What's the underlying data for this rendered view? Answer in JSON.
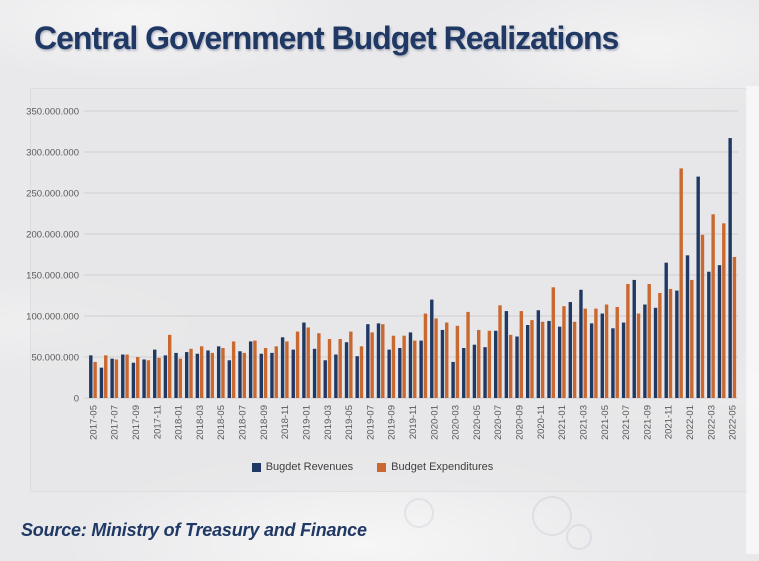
{
  "page": {
    "source": "Source: Ministry of Treasury and Finance"
  },
  "chart_data": {
    "type": "bar",
    "title": "Central Government Budget Realizations",
    "xlabel": "",
    "ylabel": "",
    "ylim": [
      0,
      350000000
    ],
    "ytick_step": 50000000,
    "ytick_labels": [
      "0",
      "50.000.000",
      "100.000.000",
      "150.000.000",
      "200.000.000",
      "250.000.000",
      "300.000.000",
      "350.000.000"
    ],
    "xtick_every_n": 2,
    "grid": true,
    "legend_position": "bottom",
    "axis_label_color": "#595959",
    "gridline_color": "#cfcfd1",
    "categories": [
      "2017-05",
      "2017-06",
      "2017-07",
      "2017-08",
      "2017-09",
      "2017-10",
      "2017-11",
      "2017-12",
      "2018-01",
      "2018-02",
      "2018-03",
      "2018-04",
      "2018-05",
      "2018-06",
      "2018-07",
      "2018-08",
      "2018-09",
      "2018-10",
      "2018-11",
      "2018-12",
      "2019-01",
      "2019-02",
      "2019-03",
      "2019-04",
      "2019-05",
      "2019-06",
      "2019-07",
      "2019-08",
      "2019-09",
      "2019-10",
      "2019-11",
      "2019-12",
      "2020-01",
      "2020-02",
      "2020-03",
      "2020-04",
      "2020-05",
      "2020-06",
      "2020-07",
      "2020-08",
      "2020-09",
      "2020-10",
      "2020-11",
      "2020-12",
      "2021-01",
      "2021-02",
      "2021-03",
      "2021-04",
      "2021-05",
      "2021-06",
      "2021-07",
      "2021-08",
      "2021-09",
      "2021-10",
      "2021-11",
      "2021-12",
      "2022-01",
      "2022-02",
      "2022-03",
      "2022-04",
      "2022-05"
    ],
    "series": [
      {
        "name": "Bugdet Revenues",
        "color": "#1f3864",
        "values": [
          52000000,
          37000000,
          48000000,
          53000000,
          43000000,
          47000000,
          59000000,
          52000000,
          55000000,
          56000000,
          54000000,
          58000000,
          63000000,
          46000000,
          57000000,
          69000000,
          54000000,
          55000000,
          74000000,
          59000000,
          92000000,
          60000000,
          46000000,
          53000000,
          68000000,
          51000000,
          90000000,
          91000000,
          59000000,
          61000000,
          80000000,
          70000000,
          120000000,
          83000000,
          44000000,
          61000000,
          65000000,
          62000000,
          82000000,
          106000000,
          75000000,
          89000000,
          107000000,
          94000000,
          87000000,
          117000000,
          132000000,
          91000000,
          103000000,
          85000000,
          92000000,
          144000000,
          114000000,
          110000000,
          165000000,
          131000000,
          174000000,
          270000000,
          154000000,
          162000000,
          317000000
        ]
      },
      {
        "name": "Budget Expenditures",
        "color": "#c9682f",
        "values": [
          44000000,
          52000000,
          47000000,
          53000000,
          50000000,
          46000000,
          49000000,
          77000000,
          48000000,
          60000000,
          63000000,
          55000000,
          61000000,
          69000000,
          55000000,
          70000000,
          61000000,
          63000000,
          69000000,
          81000000,
          86000000,
          79000000,
          72000000,
          72000000,
          81000000,
          63000000,
          80000000,
          90000000,
          76000000,
          76000000,
          70000000,
          103000000,
          97000000,
          92000000,
          88000000,
          105000000,
          83000000,
          82000000,
          113000000,
          77000000,
          106000000,
          95000000,
          93000000,
          135000000,
          112000000,
          93000000,
          109000000,
          109000000,
          114000000,
          111000000,
          139000000,
          103000000,
          139000000,
          128000000,
          133000000,
          280000000,
          144000000,
          199000000,
          224000000,
          213000000,
          172000000
        ]
      }
    ]
  }
}
